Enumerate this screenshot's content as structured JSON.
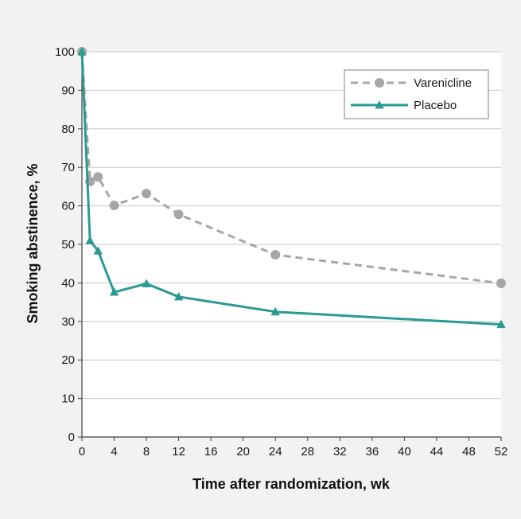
{
  "chart_data": {
    "type": "line",
    "xlabel": "Time after randomization, wk",
    "ylabel": "Smoking abstinence, %",
    "xlim": [
      0,
      52
    ],
    "ylim": [
      0,
      100
    ],
    "xticks": [
      0,
      4,
      8,
      12,
      16,
      20,
      24,
      28,
      32,
      36,
      40,
      44,
      48,
      52
    ],
    "yticks": [
      0,
      10,
      20,
      30,
      40,
      50,
      60,
      70,
      80,
      90,
      100
    ],
    "grid": "horizontal",
    "legend_position": "top-right",
    "series": [
      {
        "name": "Varenicline",
        "color": "#a6a6a6",
        "line_style": "dashed",
        "marker": "circle",
        "x": [
          0,
          1,
          2,
          4,
          8,
          12,
          24,
          52
        ],
        "y": [
          100,
          66.3,
          67.5,
          60.1,
          63.2,
          57.8,
          47.3,
          39.9
        ]
      },
      {
        "name": "Placebo",
        "color": "#2a9a95",
        "line_style": "solid",
        "marker": "triangle",
        "x": [
          0,
          1,
          2,
          4,
          8,
          12,
          24,
          52
        ],
        "y": [
          100,
          51,
          48.3,
          37.6,
          39.8,
          36.4,
          32.5,
          29.2
        ]
      }
    ]
  }
}
